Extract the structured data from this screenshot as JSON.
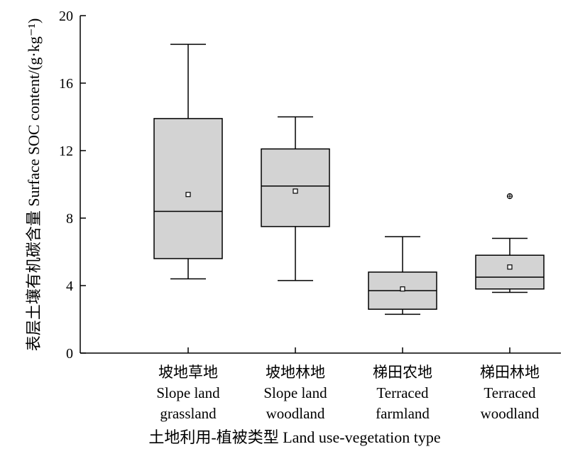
{
  "chart_data": {
    "type": "box",
    "ylabel": "表层土壤有机碳含量 Surface SOC content/(g·kg⁻¹)",
    "xlabel": "土地利用-植被类型 Land use-vegetation type",
    "ylim": [
      0,
      20
    ],
    "yticks": [
      "0",
      "4",
      "8",
      "12",
      "16",
      "20"
    ],
    "grid": false,
    "box_color": "#d3d3d3",
    "categories": [
      {
        "lines": [
          "坡地草地",
          "Slope land",
          "grassland"
        ],
        "min": 4.4,
        "q1": 5.6,
        "median": 8.4,
        "q3": 13.9,
        "max": 18.3,
        "mean": 9.4,
        "outliers": []
      },
      {
        "lines": [
          "坡地林地",
          "Slope land",
          "woodland"
        ],
        "min": 4.3,
        "q1": 7.5,
        "median": 9.9,
        "q3": 12.1,
        "max": 14.0,
        "mean": 9.6,
        "outliers": []
      },
      {
        "lines": [
          "梯田农地",
          "Terraced",
          "farmland"
        ],
        "min": 2.3,
        "q1": 2.6,
        "median": 3.7,
        "q3": 4.8,
        "max": 6.9,
        "mean": 3.8,
        "outliers": []
      },
      {
        "lines": [
          "梯田林地",
          "Terraced",
          "woodland"
        ],
        "min": 3.6,
        "q1": 3.8,
        "median": 4.5,
        "q3": 5.8,
        "max": 6.8,
        "mean": 5.1,
        "outliers": [
          9.3
        ]
      }
    ]
  }
}
